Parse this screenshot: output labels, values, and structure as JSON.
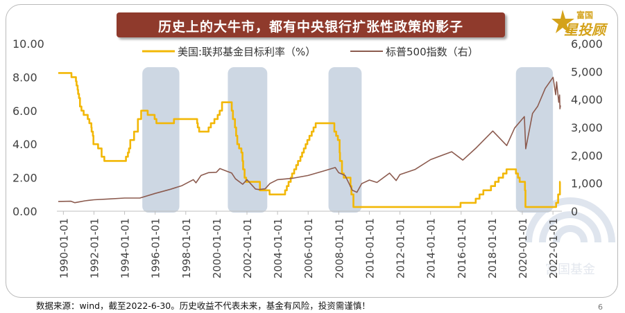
{
  "title": "历史上的大牛市，都有中央银行扩张性政策的影子",
  "brand": {
    "line1": "富国",
    "line2": "星投顾"
  },
  "watermark_text": "富国基金",
  "footnote": "数据来源：wind，截至2022-6-30。历史收益不代表未来，基金有风险，投资需谨慎！",
  "page_number": "6",
  "colors": {
    "fed_rate": "#f2b705",
    "sp500": "#8b5a4e",
    "band": "#cdd7e3",
    "title_bg": "#8f3a2c",
    "logo_gold": "#d4a21a"
  },
  "chart_data": {
    "type": "line",
    "x_axis": {
      "type": "date",
      "range": [
        "1989-09-01",
        "2022-06-30"
      ],
      "tick_labels": [
        "1990-01-01",
        "1992-01-01",
        "1994-01-01",
        "1996-01-01",
        "1998-01-01",
        "2000-01-01",
        "2002-01-01",
        "2004-01-01",
        "2006-01-01",
        "2008-01-01",
        "2010-01-01",
        "2012-01-01",
        "2014-01-01",
        "2016-01-01",
        "2018-01-01",
        "2020-01-01",
        "2022-01-01"
      ]
    },
    "y_left": {
      "range": [
        0,
        10
      ],
      "tick_labels": [
        "0.00",
        "2.00",
        "4.00",
        "6.00",
        "8.00",
        "10.00"
      ]
    },
    "y_right": {
      "range": [
        0,
        6000
      ],
      "tick_labels": [
        "0",
        "1,000",
        "2,000",
        "3,000",
        "4,000",
        "5,000",
        "6,000"
      ]
    },
    "shaded_periods": [
      {
        "start": "1995-03-01",
        "end": "1997-08-01"
      },
      {
        "start": "2000-10-01",
        "end": "2003-05-01"
      },
      {
        "start": "2007-05-01",
        "end": "2009-07-01"
      },
      {
        "start": "2019-08-01",
        "end": "2022-01-01"
      }
    ],
    "series": [
      {
        "name": "美国:联邦基金目标利率（%）",
        "axis": "left",
        "step": true,
        "points": [
          [
            "1989-09-01",
            8.25
          ],
          [
            "1990-07-13",
            8.0
          ],
          [
            "1990-10-29",
            7.75
          ],
          [
            "1990-11-13",
            7.5
          ],
          [
            "1990-12-07",
            7.25
          ],
          [
            "1990-12-18",
            7.0
          ],
          [
            "1991-01-09",
            6.75
          ],
          [
            "1991-02-01",
            6.25
          ],
          [
            "1991-03-08",
            6.0
          ],
          [
            "1991-04-30",
            5.75
          ],
          [
            "1991-08-06",
            5.5
          ],
          [
            "1991-09-13",
            5.25
          ],
          [
            "1991-10-31",
            5.0
          ],
          [
            "1991-11-06",
            4.75
          ],
          [
            "1991-12-06",
            4.5
          ],
          [
            "1991-12-20",
            4.0
          ],
          [
            "1992-04-09",
            3.75
          ],
          [
            "1992-07-02",
            3.25
          ],
          [
            "1992-09-04",
            3.0
          ],
          [
            "1994-02-04",
            3.25
          ],
          [
            "1994-03-22",
            3.5
          ],
          [
            "1994-04-18",
            3.75
          ],
          [
            "1994-05-17",
            4.25
          ],
          [
            "1994-08-16",
            4.75
          ],
          [
            "1994-11-15",
            5.5
          ],
          [
            "1995-02-01",
            6.0
          ],
          [
            "1995-07-06",
            5.75
          ],
          [
            "1995-12-19",
            5.5
          ],
          [
            "1996-01-31",
            5.25
          ],
          [
            "1997-03-25",
            5.5
          ],
          [
            "1998-09-29",
            5.25
          ],
          [
            "1998-10-15",
            5.0
          ],
          [
            "1998-11-17",
            4.75
          ],
          [
            "1999-06-30",
            5.0
          ],
          [
            "1999-08-24",
            5.25
          ],
          [
            "1999-11-16",
            5.5
          ],
          [
            "2000-02-02",
            5.75
          ],
          [
            "2000-03-21",
            6.0
          ],
          [
            "2000-05-16",
            6.5
          ],
          [
            "2001-01-03",
            6.0
          ],
          [
            "2001-01-31",
            5.5
          ],
          [
            "2001-03-20",
            5.0
          ],
          [
            "2001-04-18",
            4.5
          ],
          [
            "2001-05-15",
            4.0
          ],
          [
            "2001-06-27",
            3.75
          ],
          [
            "2001-08-21",
            3.5
          ],
          [
            "2001-09-17",
            3.0
          ],
          [
            "2001-10-02",
            2.5
          ],
          [
            "2001-11-06",
            2.0
          ],
          [
            "2001-12-11",
            1.75
          ],
          [
            "2002-11-06",
            1.25
          ],
          [
            "2003-06-25",
            1.0
          ],
          [
            "2004-06-30",
            1.25
          ],
          [
            "2004-08-10",
            1.5
          ],
          [
            "2004-09-21",
            1.75
          ],
          [
            "2004-11-10",
            2.0
          ],
          [
            "2004-12-14",
            2.25
          ],
          [
            "2005-02-02",
            2.5
          ],
          [
            "2005-03-22",
            2.75
          ],
          [
            "2005-05-03",
            3.0
          ],
          [
            "2005-06-30",
            3.25
          ],
          [
            "2005-08-09",
            3.5
          ],
          [
            "2005-09-20",
            3.75
          ],
          [
            "2005-11-01",
            4.0
          ],
          [
            "2005-12-13",
            4.25
          ],
          [
            "2006-01-31",
            4.5
          ],
          [
            "2006-03-28",
            4.75
          ],
          [
            "2006-05-10",
            5.0
          ],
          [
            "2006-06-29",
            5.25
          ],
          [
            "2007-09-18",
            4.75
          ],
          [
            "2007-10-31",
            4.5
          ],
          [
            "2007-12-11",
            4.25
          ],
          [
            "2008-01-22",
            3.5
          ],
          [
            "2008-01-30",
            3.0
          ],
          [
            "2008-03-18",
            2.25
          ],
          [
            "2008-04-30",
            2.0
          ],
          [
            "2008-10-08",
            1.5
          ],
          [
            "2008-10-29",
            1.0
          ],
          [
            "2008-12-16",
            0.25
          ],
          [
            "2015-12-17",
            0.5
          ],
          [
            "2016-12-15",
            0.75
          ],
          [
            "2017-03-16",
            1.0
          ],
          [
            "2017-06-15",
            1.25
          ],
          [
            "2017-12-14",
            1.5
          ],
          [
            "2018-03-22",
            1.75
          ],
          [
            "2018-06-14",
            2.0
          ],
          [
            "2018-09-27",
            2.25
          ],
          [
            "2018-12-20",
            2.5
          ],
          [
            "2019-08-01",
            2.25
          ],
          [
            "2019-09-19",
            2.0
          ],
          [
            "2019-10-31",
            1.75
          ],
          [
            "2020-03-04",
            1.25
          ],
          [
            "2020-03-16",
            0.25
          ],
          [
            "2022-03-17",
            0.5
          ],
          [
            "2022-05-05",
            1.0
          ],
          [
            "2022-06-16",
            1.75
          ],
          [
            "2022-06-30",
            1.75
          ]
        ]
      },
      {
        "name": "标普500指数（右）",
        "axis": "right",
        "step": false,
        "points": [
          [
            "1989-09-01",
            349
          ],
          [
            "1990-07-01",
            356
          ],
          [
            "1990-10-01",
            305
          ],
          [
            "1991-01-01",
            330
          ],
          [
            "1991-06-01",
            371
          ],
          [
            "1992-01-01",
            408
          ],
          [
            "1993-01-01",
            438
          ],
          [
            "1994-01-01",
            472
          ],
          [
            "1995-01-01",
            470
          ],
          [
            "1996-01-01",
            636
          ],
          [
            "1997-01-01",
            786
          ],
          [
            "1997-10-01",
            914
          ],
          [
            "1998-07-01",
            1130
          ],
          [
            "1998-09-01",
            1017
          ],
          [
            "1999-01-01",
            1279
          ],
          [
            "1999-07-01",
            1380
          ],
          [
            "2000-01-01",
            1394
          ],
          [
            "2000-03-24",
            1527
          ],
          [
            "2000-09-01",
            1436
          ],
          [
            "2001-01-01",
            1366
          ],
          [
            "2001-04-01",
            1160
          ],
          [
            "2001-09-21",
            965
          ],
          [
            "2002-01-01",
            1130
          ],
          [
            "2002-07-23",
            797
          ],
          [
            "2002-10-09",
            777
          ],
          [
            "2003-03-11",
            800
          ],
          [
            "2003-07-01",
            990
          ],
          [
            "2004-01-01",
            1131
          ],
          [
            "2005-01-01",
            1181
          ],
          [
            "2006-01-01",
            1280
          ],
          [
            "2007-01-01",
            1438
          ],
          [
            "2007-10-09",
            1565
          ],
          [
            "2008-01-01",
            1378
          ],
          [
            "2008-06-01",
            1280
          ],
          [
            "2008-11-20",
            752
          ],
          [
            "2009-03-09",
            677
          ],
          [
            "2009-07-01",
            987
          ],
          [
            "2010-01-01",
            1115
          ],
          [
            "2010-07-01",
            1030
          ],
          [
            "2011-04-29",
            1363
          ],
          [
            "2011-10-03",
            1099
          ],
          [
            "2012-01-01",
            1312
          ],
          [
            "2013-01-01",
            1498
          ],
          [
            "2014-01-01",
            1848
          ],
          [
            "2015-05-21",
            2130
          ],
          [
            "2016-02-11",
            1829
          ],
          [
            "2017-01-01",
            2278
          ],
          [
            "2018-01-26",
            2872
          ],
          [
            "2018-12-24",
            2351
          ],
          [
            "2019-07-01",
            2980
          ],
          [
            "2020-02-19",
            3386
          ],
          [
            "2020-03-23",
            2237
          ],
          [
            "2020-09-01",
            3500
          ],
          [
            "2021-01-01",
            3756
          ],
          [
            "2021-07-01",
            4395
          ],
          [
            "2022-01-03",
            4796
          ],
          [
            "2022-03-08",
            4170
          ],
          [
            "2022-03-29",
            4631
          ],
          [
            "2022-05-20",
            3901
          ],
          [
            "2022-06-08",
            4160
          ],
          [
            "2022-06-16",
            3666
          ],
          [
            "2022-06-30",
            3785
          ]
        ]
      }
    ]
  }
}
